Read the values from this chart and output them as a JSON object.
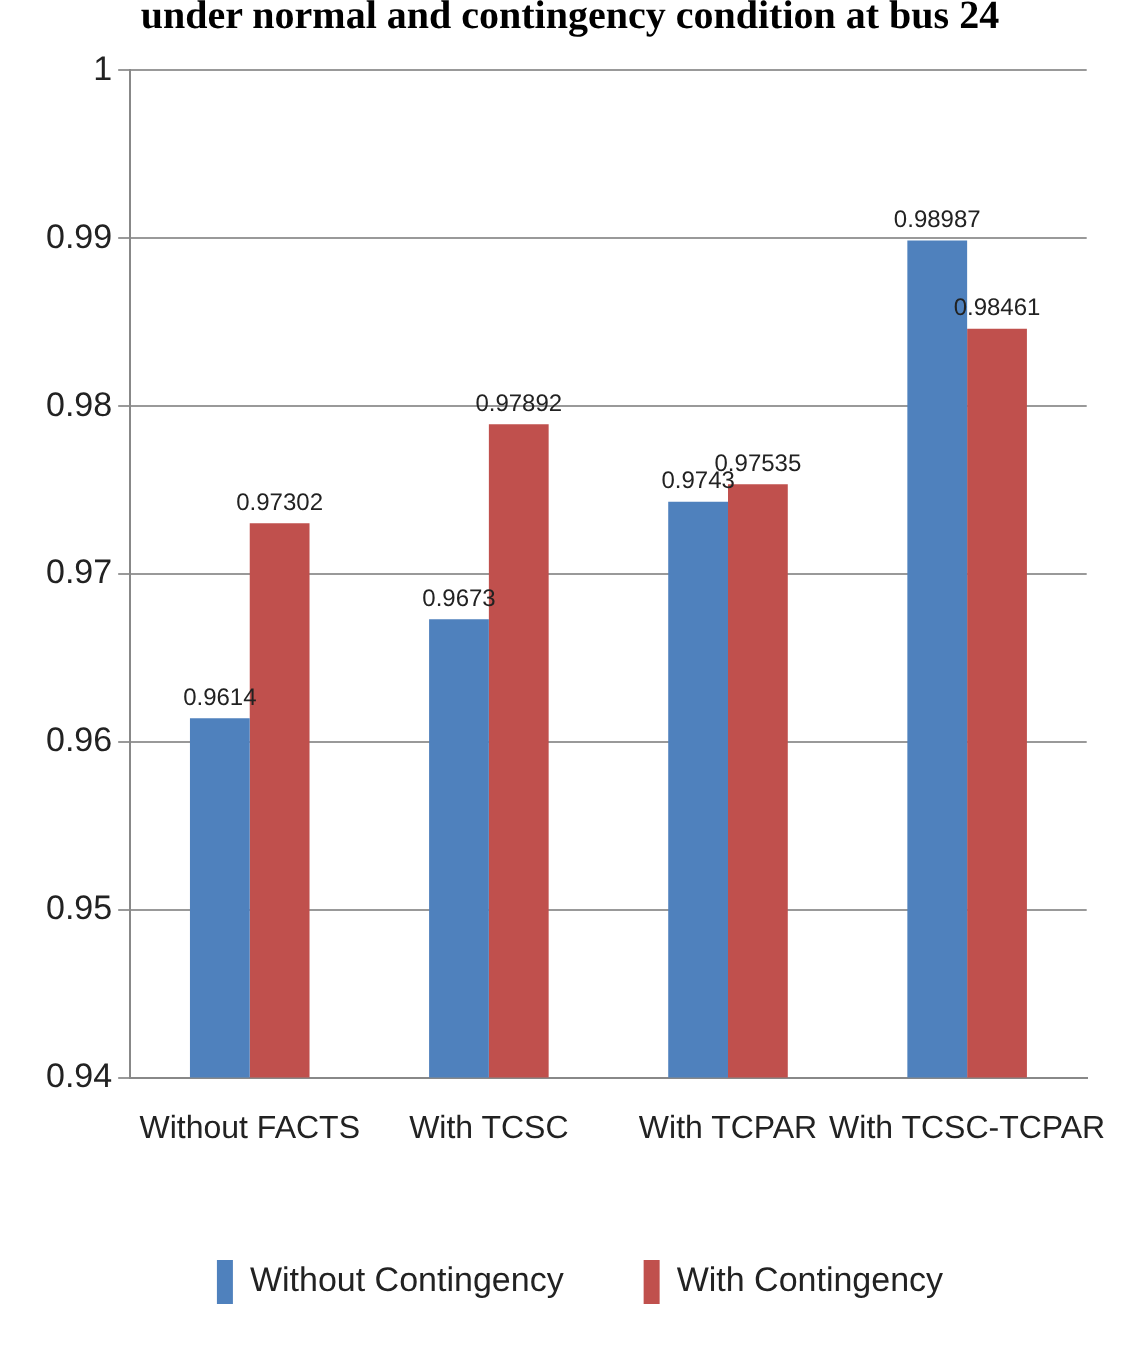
{
  "chart_data": {
    "type": "bar",
    "title": "under normal and contingency condition at bus 24",
    "categories": [
      "Without FACTS",
      "With TCSC",
      "With TCPAR",
      "With TCSC-TCPAR"
    ],
    "series": [
      {
        "name": "Without Contingency",
        "color": "#4f81bd",
        "values": [
          0.9614,
          0.9673,
          0.9743,
          0.98987
        ]
      },
      {
        "name": "With Contingency",
        "color": "#c0504d",
        "values": [
          0.97302,
          0.97892,
          0.97535,
          0.98461
        ]
      }
    ],
    "ylim": [
      0.94,
      1
    ],
    "yticks": [
      0.94,
      0.95,
      0.96,
      0.97,
      0.98,
      0.99,
      1
    ],
    "grid": "y",
    "legend": "bottom",
    "data_labels": true
  }
}
